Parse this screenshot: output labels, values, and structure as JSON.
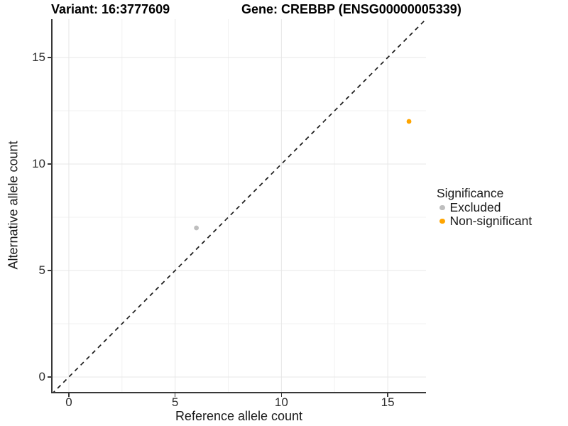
{
  "header": {
    "variant_title": "Variant: 16:3777609",
    "gene_title": "Gene: CREBBP (ENSG00000005339)"
  },
  "chart_data": {
    "type": "scatter",
    "titles": [
      "Variant: 16:3777609",
      "Gene: CREBBP (ENSG00000005339)"
    ],
    "xlabel": "Reference allele count",
    "ylabel": "Alternative allele count",
    "xlim": [
      -0.8,
      16.8
    ],
    "ylim": [
      -0.7,
      16.8
    ],
    "x_ticks": [
      0,
      5,
      10,
      15
    ],
    "y_ticks": [
      0,
      5,
      10,
      15
    ],
    "x_minor_ticks": [
      2.5,
      7.5,
      12.5
    ],
    "y_minor_ticks": [
      2.5,
      7.5,
      12.5
    ],
    "grid": "major+minor",
    "identity_line": {
      "type": "y=x",
      "style": "dashed",
      "color": "#1a1a1a"
    },
    "series": [
      {
        "name": "Excluded",
        "color": "#bebebe",
        "points": [
          [
            6,
            7
          ]
        ]
      },
      {
        "name": "Non-significant",
        "color": "#ffa500",
        "points": [
          [
            16,
            12
          ]
        ]
      }
    ],
    "legend": {
      "title": "Significance",
      "position": "right",
      "items": [
        {
          "label": "Excluded",
          "color": "#bebebe"
        },
        {
          "label": "Non-significant",
          "color": "#ffa500"
        }
      ]
    }
  },
  "style": {
    "background": "#ffffff",
    "grid_major_color": "#e7e7e7",
    "grid_minor_color": "#f2f2f2",
    "axis_line_color": "#383838",
    "tick_label_color": "#2e2e2e",
    "point_gray": "#bebebe",
    "point_orange": "#ffa500"
  }
}
